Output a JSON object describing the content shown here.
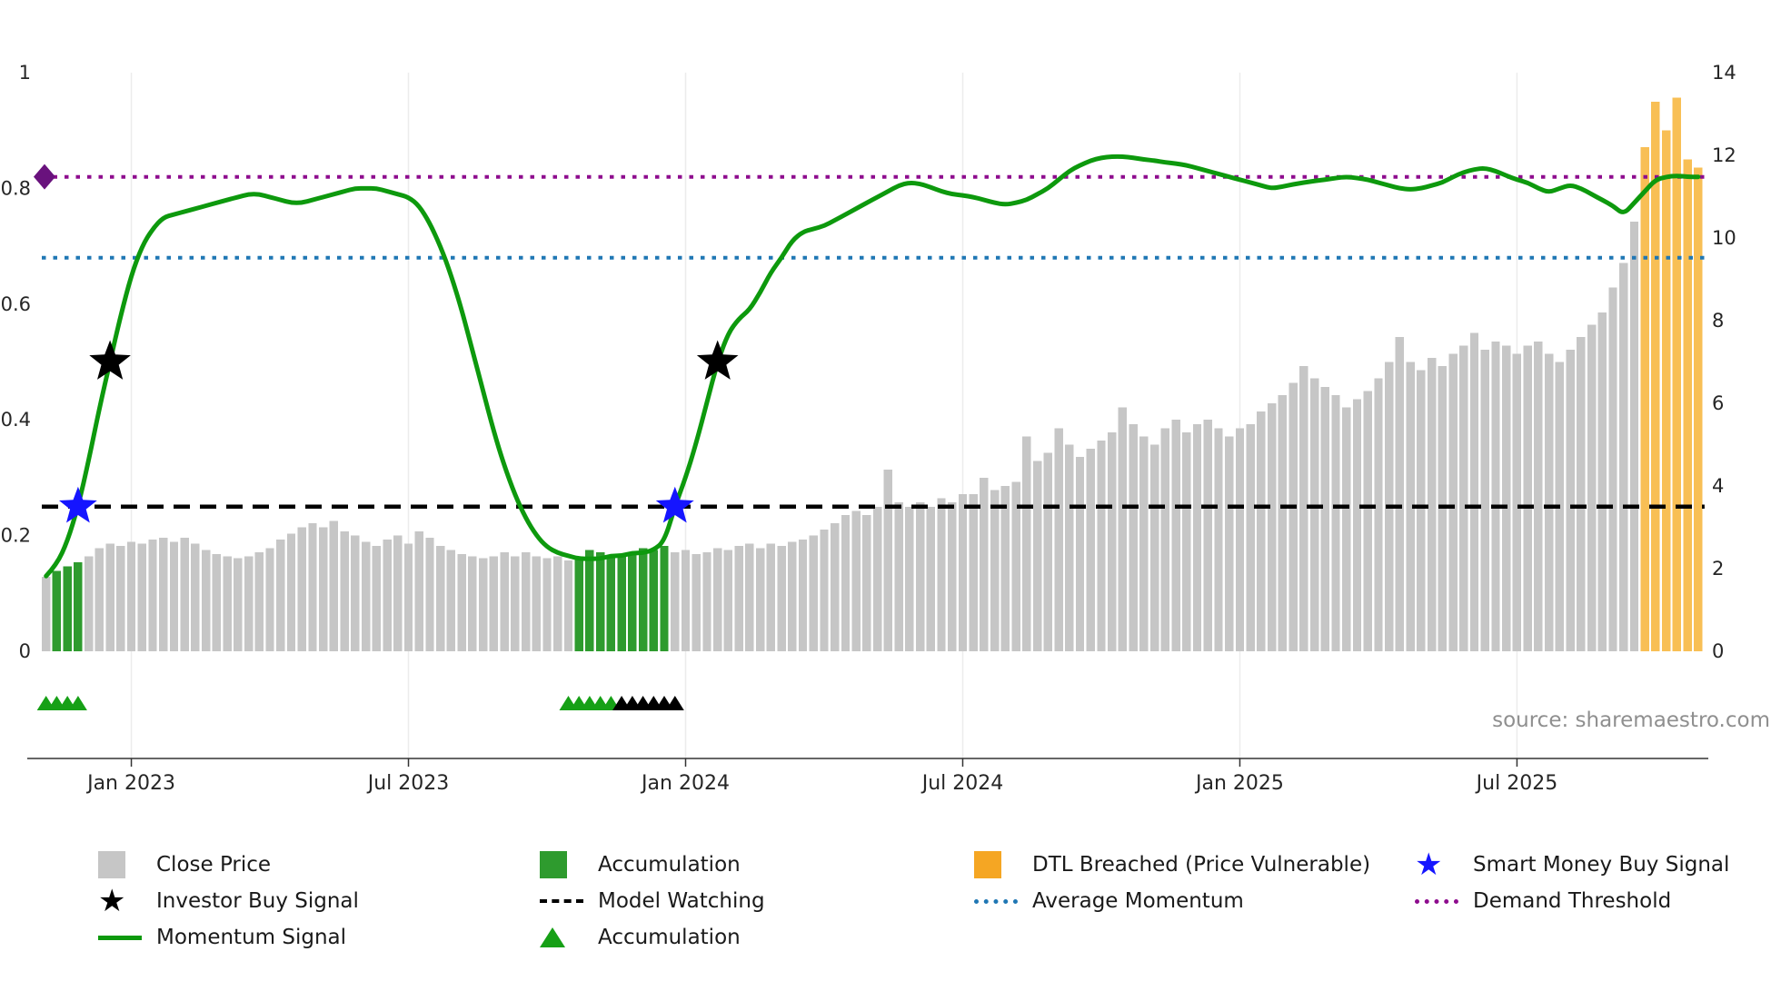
{
  "source_note": "source: sharemaestro.com",
  "colors": {
    "close_bar": "#c6c6c6",
    "accum_bar": "#2e9b2e",
    "dtl_bar": "#f8bf55",
    "dtl_legend": "#f5a623",
    "momentum_line": "#0d990d",
    "avg_momentum": "#1f77b4",
    "demand_threshold": "#8e0c8e",
    "model_watching": "#000000",
    "smart_money_star": "#1515ff",
    "investor_star": "#000000",
    "accum_marker": "#16a016",
    "demand_marker": "#69127d",
    "grid": "#ececec",
    "axis": "#333333",
    "tick_label": "#262626"
  },
  "legend": {
    "close_price": "Close Price",
    "investor_buy": "Investor Buy Signal",
    "momentum": "Momentum Signal",
    "accumulation_bar": "Accumulation",
    "model_watching": "Model Watching",
    "accumulation_marker": "Accumulation",
    "dtl": "DTL Breached (Price Vulnerable)",
    "avg_momentum": "Average Momentum",
    "smart_money": "Smart Money Buy Signal",
    "demand_threshold": "Demand Threshold"
  },
  "chart_data": {
    "type": "bar+line",
    "title": "",
    "x_unit": "weekly",
    "x_range": [
      "Nov 2022",
      "Oct 2025"
    ],
    "legend_position": "bottom",
    "grid": "vertical-only",
    "x_ticks": [
      {
        "i": 8,
        "label": "Jan 2023"
      },
      {
        "i": 34,
        "label": "Jul 2023"
      },
      {
        "i": 60,
        "label": "Jan 2024"
      },
      {
        "i": 86,
        "label": "Jul 2024"
      },
      {
        "i": 112,
        "label": "Jan 2025"
      },
      {
        "i": 138,
        "label": "Jul 2025"
      }
    ],
    "y_left": {
      "label": "",
      "range": [
        0,
        1
      ],
      "ticks": [
        0,
        0.2,
        0.4,
        0.6,
        0.8,
        1
      ]
    },
    "y_right": {
      "label": "",
      "range": [
        0,
        14
      ],
      "ticks": [
        0,
        2,
        4,
        6,
        8,
        10,
        12,
        14
      ]
    },
    "series": [
      {
        "name": "Close Price",
        "type": "bar",
        "axis": "right",
        "segments": {
          "accumulation": [
            [
              1,
              3
            ],
            [
              50,
              58
            ]
          ],
          "dtl_breached": [
            [
              150,
              155
            ]
          ]
        },
        "values": [
          1.8,
          1.95,
          2.05,
          2.15,
          2.3,
          2.5,
          2.6,
          2.55,
          2.65,
          2.6,
          2.7,
          2.75,
          2.65,
          2.75,
          2.6,
          2.45,
          2.35,
          2.3,
          2.25,
          2.3,
          2.4,
          2.5,
          2.7,
          2.85,
          3.0,
          3.1,
          3.0,
          3.15,
          2.9,
          2.8,
          2.65,
          2.55,
          2.7,
          2.8,
          2.6,
          2.9,
          2.75,
          2.55,
          2.45,
          2.35,
          2.3,
          2.25,
          2.3,
          2.4,
          2.3,
          2.4,
          2.3,
          2.25,
          2.3,
          2.2,
          2.3,
          2.45,
          2.4,
          2.3,
          2.35,
          2.4,
          2.5,
          2.45,
          2.55,
          2.4,
          2.45,
          2.35,
          2.4,
          2.5,
          2.45,
          2.55,
          2.6,
          2.5,
          2.6,
          2.55,
          2.65,
          2.7,
          2.8,
          2.95,
          3.1,
          3.3,
          3.4,
          3.3,
          3.5,
          4.4,
          3.6,
          3.5,
          3.6,
          3.5,
          3.7,
          3.6,
          3.8,
          3.8,
          4.2,
          3.9,
          4.0,
          4.1,
          5.2,
          4.6,
          4.8,
          5.4,
          5.0,
          4.7,
          4.9,
          5.1,
          5.3,
          5.9,
          5.5,
          5.2,
          5.0,
          5.4,
          5.6,
          5.3,
          5.5,
          5.6,
          5.4,
          5.2,
          5.4,
          5.5,
          5.8,
          6.0,
          6.2,
          6.5,
          6.9,
          6.6,
          6.4,
          6.2,
          5.9,
          6.1,
          6.3,
          6.6,
          7.0,
          7.6,
          7.0,
          6.8,
          7.1,
          6.9,
          7.2,
          7.4,
          7.7,
          7.3,
          7.5,
          7.4,
          7.2,
          7.4,
          7.5,
          7.2,
          7.0,
          7.3,
          7.6,
          7.9,
          8.2,
          8.8,
          9.4,
          10.4,
          12.2,
          13.3,
          12.6,
          13.4,
          11.9,
          11.7
        ]
      },
      {
        "name": "Momentum Signal",
        "type": "line",
        "axis": "left",
        "values": [
          0.13,
          0.15,
          0.19,
          0.25,
          0.33,
          0.42,
          0.5,
          0.58,
          0.65,
          0.7,
          0.73,
          0.75,
          0.755,
          0.76,
          0.765,
          0.77,
          0.775,
          0.78,
          0.785,
          0.79,
          0.79,
          0.785,
          0.78,
          0.775,
          0.775,
          0.78,
          0.785,
          0.79,
          0.795,
          0.8,
          0.8,
          0.8,
          0.795,
          0.79,
          0.785,
          0.77,
          0.74,
          0.7,
          0.65,
          0.59,
          0.52,
          0.45,
          0.38,
          0.32,
          0.27,
          0.23,
          0.2,
          0.18,
          0.17,
          0.165,
          0.16,
          0.16,
          0.16,
          0.165,
          0.165,
          0.17,
          0.17,
          0.175,
          0.19,
          0.25,
          0.3,
          0.36,
          0.43,
          0.5,
          0.55,
          0.575,
          0.59,
          0.62,
          0.655,
          0.68,
          0.71,
          0.725,
          0.73,
          0.735,
          0.745,
          0.755,
          0.765,
          0.775,
          0.785,
          0.795,
          0.805,
          0.81,
          0.808,
          0.802,
          0.795,
          0.79,
          0.788,
          0.785,
          0.78,
          0.775,
          0.772,
          0.775,
          0.78,
          0.79,
          0.8,
          0.815,
          0.83,
          0.84,
          0.848,
          0.853,
          0.855,
          0.855,
          0.853,
          0.85,
          0.848,
          0.845,
          0.843,
          0.84,
          0.835,
          0.83,
          0.825,
          0.82,
          0.815,
          0.81,
          0.805,
          0.8,
          0.803,
          0.807,
          0.81,
          0.813,
          0.815,
          0.818,
          0.82,
          0.818,
          0.815,
          0.81,
          0.805,
          0.8,
          0.798,
          0.8,
          0.805,
          0.81,
          0.82,
          0.828,
          0.833,
          0.835,
          0.83,
          0.822,
          0.815,
          0.81,
          0.8,
          0.793,
          0.8,
          0.806,
          0.8,
          0.79,
          0.78,
          0.77,
          0.755,
          0.775,
          0.795,
          0.815,
          0.82,
          0.822,
          0.82,
          0.82
        ]
      }
    ],
    "hlines": [
      {
        "name": "Demand Threshold",
        "v": 0.82,
        "axis": "left",
        "style": "dotted",
        "color": "#8e0c8e"
      },
      {
        "name": "Average Momentum",
        "v": 0.68,
        "axis": "left",
        "style": "dotted",
        "color": "#1f77b4"
      },
      {
        "name": "Model Watching",
        "v": 0.25,
        "axis": "left",
        "style": "dashed",
        "color": "#000000"
      }
    ],
    "markers": {
      "investor_buy_signal": [
        {
          "i": 6,
          "v": 0.5
        },
        {
          "i": 63,
          "v": 0.5
        }
      ],
      "smart_money_buy_signal": [
        {
          "i": 3,
          "v": 0.25
        },
        {
          "i": 59,
          "v": 0.25
        }
      ],
      "demand_threshold_start": {
        "i": 0,
        "v": 0.82
      },
      "accumulation_green_i": [
        0,
        1,
        2,
        3,
        49,
        50,
        51,
        52,
        53
      ],
      "accumulation_black_i": [
        54,
        55,
        56,
        57,
        58,
        59
      ]
    }
  }
}
